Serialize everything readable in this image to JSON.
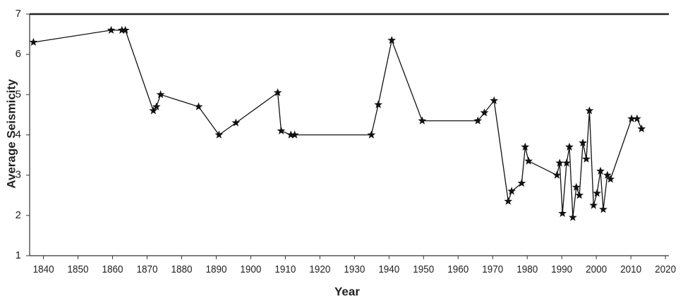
{
  "chart_data": {
    "type": "line",
    "x_label": "Year",
    "y_label": "Average Seismicity",
    "color": "#111111",
    "x": [
      1837.1,
      1859.6,
      1862.7,
      1863.7,
      1871.8,
      1872.7,
      1873.9,
      1884.9,
      1890.8,
      1895.7,
      1907.8,
      1908.8,
      1911.6,
      1912.7,
      1934.9,
      1936.9,
      1940.8,
      1949.6,
      1965.7,
      1967.6,
      1970.4,
      1974.5,
      1975.5,
      1978.4,
      1979.4,
      1980.4,
      1988.6,
      1989.4,
      1990.2,
      1991.4,
      1992.2,
      1993.2,
      1994.2,
      1995.1,
      1996.1,
      1997.1,
      1998.0,
      1999.2,
      2000.2,
      2001.2,
      2002.0,
      2003.2,
      2004.1,
      2010.2,
      2011.8,
      2013.1
    ],
    "values": [
      6.3,
      6.6,
      6.6,
      6.6,
      4.6,
      4.7,
      5.0,
      4.7,
      4.0,
      4.3,
      5.05,
      4.1,
      4.0,
      4.0,
      4.0,
      4.75,
      6.35,
      4.35,
      4.35,
      4.55,
      4.85,
      2.35,
      2.6,
      2.8,
      3.7,
      3.35,
      3.0,
      3.3,
      2.05,
      3.3,
      3.7,
      1.95,
      2.7,
      2.5,
      3.8,
      3.4,
      4.6,
      2.25,
      2.55,
      3.1,
      2.15,
      3.0,
      2.9,
      4.4,
      4.4,
      4.15
    ],
    "xlim": [
      1836,
      2021
    ],
    "ylim": [
      1,
      7
    ],
    "xticks": [
      1840,
      1850,
      1860,
      1870,
      1880,
      1890,
      1900,
      1910,
      1920,
      1930,
      1940,
      1950,
      1960,
      1970,
      1980,
      1990,
      2000,
      2010,
      2020
    ],
    "yticks": [
      1,
      2,
      3,
      4,
      5,
      6,
      7
    ]
  }
}
